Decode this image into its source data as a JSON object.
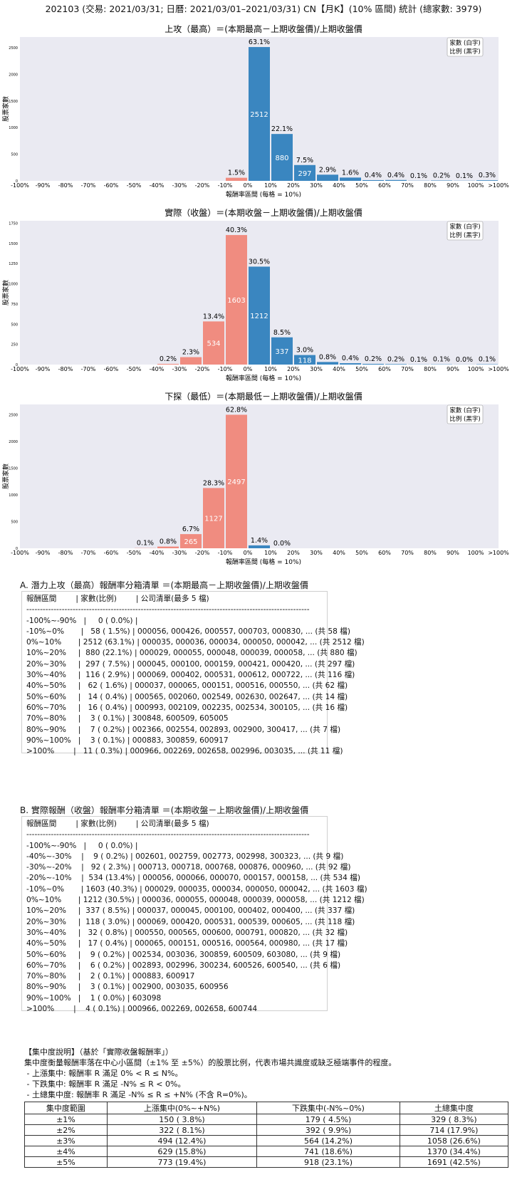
{
  "page": {
    "title": "202103 (交易: 2021/03/31; 日曆: 2021/03/01–2021/03/31) CN【月K】(10% 區間) 統計 (總家數: 3979)"
  },
  "legend_box": {
    "line1": "家數 (白字)",
    "line2": "比例 (黑字)"
  },
  "bins": [
    "-100%",
    "-90%",
    "-80%",
    "-70%",
    "-60%",
    "-50%",
    "-40%",
    "-30%",
    "-20%",
    "-10%",
    "0%",
    "10%",
    "20%",
    "30%",
    "40%",
    "50%",
    "60%",
    "70%",
    "80%",
    "90%",
    "100%",
    ">100%"
  ],
  "colors": {
    "negative": "#f08c80",
    "positive": "#3a86c0",
    "plot_bg": "#eaeaf2"
  },
  "chart_data": [
    {
      "type": "bar",
      "title": "上攻（最高）＝(本期最高－上期收盤價)/上期收盤價",
      "xlabel": "報酬率區間 (每格 = 10%)",
      "ylabel": "股票家數",
      "yticks": [
        0,
        500,
        1000,
        1500,
        2000,
        2500
      ],
      "ymax": 2700,
      "bars": [
        {
          "bin": 9,
          "count": 58,
          "pct": "1.5%",
          "sign": "neg"
        },
        {
          "bin": 10,
          "count": 2512,
          "pct": "63.1%",
          "sign": "pos"
        },
        {
          "bin": 11,
          "count": 880,
          "pct": "22.1%",
          "sign": "pos"
        },
        {
          "bin": 12,
          "count": 297,
          "pct": "7.5%",
          "sign": "pos"
        },
        {
          "bin": 13,
          "count": 116,
          "pct": "2.9%",
          "sign": "pos"
        },
        {
          "bin": 14,
          "count": 62,
          "pct": "1.6%",
          "sign": "pos"
        },
        {
          "bin": 15,
          "count": 14,
          "pct": "0.4%",
          "sign": "pos"
        },
        {
          "bin": 16,
          "count": 16,
          "pct": "0.4%",
          "sign": "pos"
        },
        {
          "bin": 17,
          "count": 3,
          "pct": "0.1%",
          "sign": "pos"
        },
        {
          "bin": 18,
          "count": 7,
          "pct": "0.2%",
          "sign": "pos"
        },
        {
          "bin": 19,
          "count": 3,
          "pct": "0.1%",
          "sign": "pos"
        },
        {
          "bin": 20,
          "count": 11,
          "pct": "0.3%",
          "sign": "pos"
        }
      ]
    },
    {
      "type": "bar",
      "title": "實際（收盤）＝(本期收盤－上期收盤價)/上期收盤價",
      "xlabel": "報酬率區間 (每格 = 10%)",
      "ylabel": "股票家數",
      "yticks": [
        0,
        250,
        500,
        750,
        1000,
        1250,
        1500,
        1750
      ],
      "ymax": 1780,
      "bars": [
        {
          "bin": 6,
          "count": 9,
          "pct": "0.2%",
          "sign": "neg"
        },
        {
          "bin": 7,
          "count": 92,
          "pct": "2.3%",
          "sign": "neg"
        },
        {
          "bin": 8,
          "count": 534,
          "pct": "13.4%",
          "sign": "neg"
        },
        {
          "bin": 9,
          "count": 1603,
          "pct": "40.3%",
          "sign": "neg"
        },
        {
          "bin": 10,
          "count": 1212,
          "pct": "30.5%",
          "sign": "pos"
        },
        {
          "bin": 11,
          "count": 337,
          "pct": "8.5%",
          "sign": "pos"
        },
        {
          "bin": 12,
          "count": 118,
          "pct": "3.0%",
          "sign": "pos"
        },
        {
          "bin": 13,
          "count": 32,
          "pct": "0.8%",
          "sign": "pos"
        },
        {
          "bin": 14,
          "count": 17,
          "pct": "0.4%",
          "sign": "pos"
        },
        {
          "bin": 15,
          "count": 9,
          "pct": "0.2%",
          "sign": "pos"
        },
        {
          "bin": 16,
          "count": 6,
          "pct": "0.2%",
          "sign": "pos"
        },
        {
          "bin": 17,
          "count": 2,
          "pct": "0.1%",
          "sign": "pos"
        },
        {
          "bin": 18,
          "count": 3,
          "pct": "0.1%",
          "sign": "pos"
        },
        {
          "bin": 19,
          "count": 1,
          "pct": "0.0%",
          "sign": "pos"
        },
        {
          "bin": 20,
          "count": 4,
          "pct": "0.1%",
          "sign": "pos"
        }
      ]
    },
    {
      "type": "bar",
      "title": "下探（最低）＝(本期最低－上期收盤價)/上期收盤價",
      "xlabel": "報酬率區間 (每格 = 10%)",
      "ylabel": "股票家數",
      "yticks": [
        0,
        500,
        1000,
        1500,
        2000,
        2500
      ],
      "ymax": 2690,
      "bars": [
        {
          "bin": 5,
          "count": 4,
          "pct": "0.1%",
          "sign": "neg"
        },
        {
          "bin": 6,
          "count": 32,
          "pct": "0.8%",
          "sign": "neg"
        },
        {
          "bin": 7,
          "count": 265,
          "pct": "6.7%",
          "sign": "neg"
        },
        {
          "bin": 8,
          "count": 1127,
          "pct": "28.3%",
          "sign": "neg"
        },
        {
          "bin": 9,
          "count": 2497,
          "pct": "62.8%",
          "sign": "neg"
        },
        {
          "bin": 10,
          "count": 54,
          "pct": "1.4%",
          "sign": "pos"
        },
        {
          "bin": 11,
          "count": 0,
          "pct": "0.0%",
          "sign": "pos"
        }
      ]
    }
  ],
  "sectionA": {
    "title": "A. 潛力上攻（最高）報酬率分箱清單 ＝(本期最高－上期收盤價)/上期收盤價",
    "lines": [
      "報酬區間        | 家數(比例)        | 公司清單(最多 5 檔)",
      "--------------------------------------------------------------------------------------------------------",
      "-100%~-90%   |     0 ( 0.0%) |",
      "-10%~0%       |   58 ( 1.5%) | 000056, 000426, 000557, 000703, 000830, ... (共 58 檔)",
      "0%~10%       | 2512 (63.1%) | 000035, 000036, 000034, 000050, 000042, ... (共 2512 檔)",
      "10%~20%     |  880 (22.1%) | 000029, 000055, 000048, 000039, 000058, ... (共 880 檔)",
      "20%~30%     |  297 ( 7.5%) | 000045, 000100, 000159, 000421, 000420, ... (共 297 檔)",
      "30%~40%     |  116 ( 2.9%) | 000069, 000402, 000531, 000612, 000722, ... (共 116 檔)",
      "40%~50%     |   62 ( 1.6%) | 000037, 000065, 000151, 000516, 000550, ... (共 62 檔)",
      "50%~60%     |   14 ( 0.4%) | 000565, 002060, 002549, 002630, 002647, ... (共 14 檔)",
      "60%~70%     |   16 ( 0.4%) | 000993, 002109, 002235, 002534, 300105, ... (共 16 檔)",
      "70%~80%     |    3 ( 0.1%) | 300848, 600509, 605005",
      "80%~90%     |    7 ( 0.2%) | 002366, 002554, 002893, 002900, 300417, ... (共 7 檔)",
      "90%~100%   |    3 ( 0.1%) | 000883, 300859, 600917",
      ">100%        |   11 ( 0.3%) | 000966, 002269, 002658, 002996, 003035, ... (共 11 檔)"
    ]
  },
  "sectionB": {
    "title": "B. 實際報酬（收盤）報酬率分箱清單 ＝(本期收盤－上期收盤價)/上期收盤價",
    "lines": [
      "報酬區間        | 家數(比例)        | 公司清單(最多 5 檔)",
      "--------------------------------------------------------------------------------------------------------",
      "-100%~-90%   |     0 ( 0.0%) |",
      "-40%~-30%    |    9 ( 0.2%) | 002601, 002759, 002773, 002998, 300323, ... (共 9 檔)",
      "-30%~-20%    |   92 ( 2.3%) | 000713, 000718, 000768, 000876, 000960, ... (共 92 檔)",
      "-20%~-10%    |  534 (13.4%) | 000056, 000066, 000070, 000157, 000158, ... (共 534 檔)",
      "-10%~0%       | 1603 (40.3%) | 000029, 000035, 000034, 000050, 000042, ... (共 1603 檔)",
      "0%~10%       | 1212 (30.5%) | 000036, 000055, 000048, 000039, 000058, ... (共 1212 檔)",
      "10%~20%     |  337 ( 8.5%) | 000037, 000045, 000100, 000402, 000400, ... (共 337 檔)",
      "20%~30%     |  118 ( 3.0%) | 000069, 000420, 000531, 000539, 000605, ... (共 118 檔)",
      "30%~40%     |   32 ( 0.8%) | 000550, 000565, 000600, 000791, 000820, ... (共 32 檔)",
      "40%~50%     |   17 ( 0.4%) | 000065, 000151, 000516, 000564, 000980, ... (共 17 檔)",
      "50%~60%     |    9 ( 0.2%) | 002534, 003036, 300859, 600509, 603080, ... (共 9 檔)",
      "60%~70%     |    6 ( 0.2%) | 002893, 002996, 300234, 600526, 600540, ... (共 6 檔)",
      "70%~80%     |    2 ( 0.1%) | 000883, 600917",
      "80%~90%     |    3 ( 0.1%) | 002900, 003035, 600956",
      "90%~100%   |    1 ( 0.0%) | 603098",
      ">100%        |    4 ( 0.1%) | 000966, 002269, 002658, 600744"
    ]
  },
  "notes": [
    "【集中度說明】（基於「實際收盤報酬率」）",
    "集中度衡量報酬率落在中心小區間（±1% 至 ±5%）的股票比例，代表市場共識度或缺乏極端事件的程度。",
    " - 上漲集中: 報酬率 R 滿足 0% < R ≤ N%。",
    " - 下跌集中: 報酬率 R 滿足 -N% ≤ R < 0%。",
    " - 土總集中度: 報酬率 R 滿足 -N% ≤ R ≤ +N% (不含 R=0%)。"
  ],
  "conc_table": {
    "headers": [
      "集中度範圍",
      "上漲集中(0%~+N%)",
      "下跌集中(-N%~0%)",
      "土總集中度"
    ],
    "rows": [
      [
        "±1%",
        "150 ( 3.8%)",
        "179 ( 4.5%)",
        "329 ( 8.3%)"
      ],
      [
        "±2%",
        "322 ( 8.1%)",
        "392 ( 9.9%)",
        "714 (17.9%)"
      ],
      [
        "±3%",
        "494 (12.4%)",
        "564 (14.2%)",
        "1058 (26.6%)"
      ],
      [
        "±4%",
        "629 (15.8%)",
        "741 (18.6%)",
        "1370 (34.4%)"
      ],
      [
        "±5%",
        "773 (19.4%)",
        "918 (23.1%)",
        "1691 (42.5%)"
      ]
    ]
  }
}
